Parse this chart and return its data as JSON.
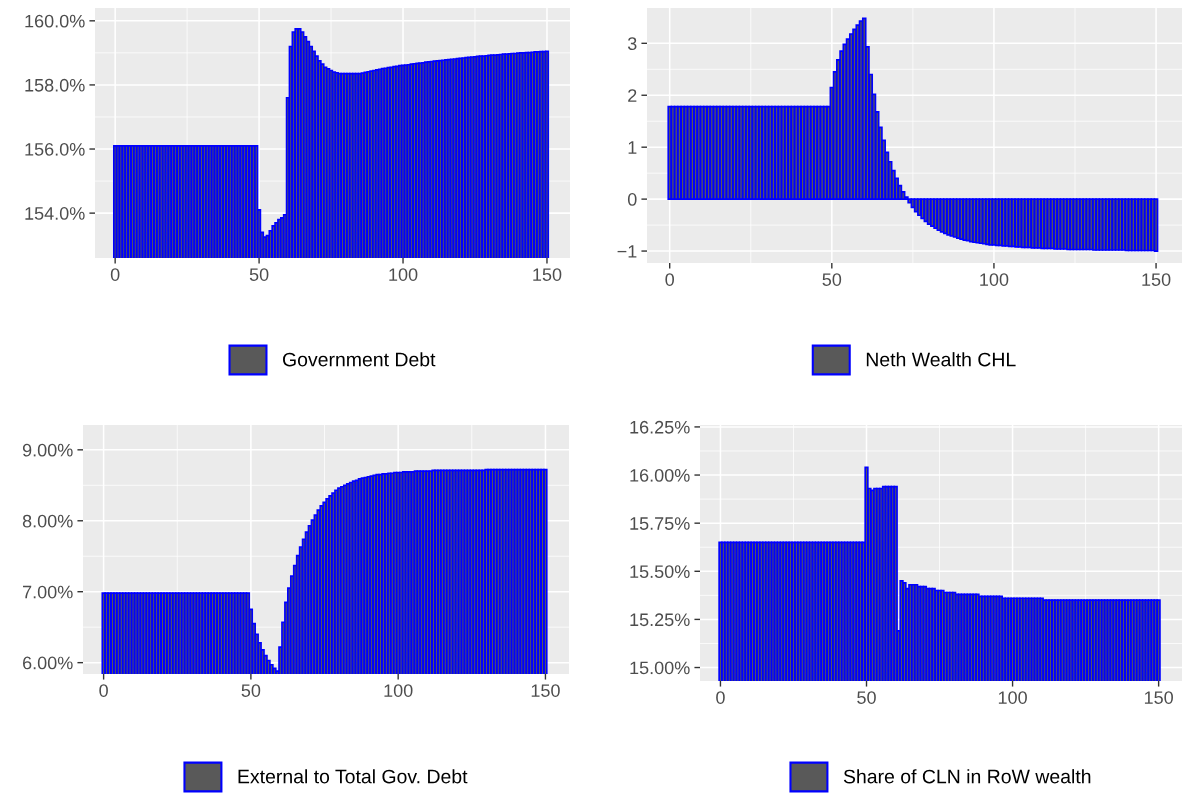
{
  "chart_data": [
    {
      "type": "bar",
      "x": [
        0,
        1,
        2,
        3,
        4,
        5,
        6,
        7,
        8,
        9,
        10,
        11,
        12,
        13,
        14,
        15,
        16,
        17,
        18,
        19,
        20,
        21,
        22,
        23,
        24,
        25,
        26,
        27,
        28,
        29,
        30,
        31,
        32,
        33,
        34,
        35,
        36,
        37,
        38,
        39,
        40,
        41,
        42,
        43,
        44,
        45,
        46,
        47,
        48,
        49,
        50,
        51,
        52,
        53,
        54,
        55,
        56,
        57,
        58,
        59,
        60,
        61,
        62,
        63,
        64,
        65,
        66,
        67,
        68,
        69,
        70,
        71,
        72,
        73,
        74,
        75,
        76,
        77,
        78,
        79,
        80,
        81,
        82,
        83,
        84,
        85,
        86,
        87,
        88,
        89,
        90,
        91,
        92,
        93,
        94,
        95,
        96,
        97,
        98,
        99,
        100,
        101,
        102,
        103,
        104,
        105,
        106,
        107,
        108,
        109,
        110,
        111,
        112,
        113,
        114,
        115,
        116,
        117,
        118,
        119,
        120,
        121,
        122,
        123,
        124,
        125,
        126,
        127,
        128,
        129,
        130,
        131,
        132,
        133,
        134,
        135,
        136,
        137,
        138,
        139,
        140,
        141,
        142,
        143,
        144,
        145,
        146,
        147,
        148,
        149,
        150
      ],
      "series": [
        {
          "name": "Government Debt",
          "color": "#0000ff",
          "values": [
            156.1,
            156.1,
            156.1,
            156.1,
            156.1,
            156.1,
            156.1,
            156.1,
            156.1,
            156.1,
            156.1,
            156.1,
            156.1,
            156.1,
            156.1,
            156.1,
            156.1,
            156.1,
            156.1,
            156.1,
            156.1,
            156.1,
            156.1,
            156.1,
            156.1,
            156.1,
            156.1,
            156.1,
            156.1,
            156.1,
            156.1,
            156.1,
            156.1,
            156.1,
            156.1,
            156.1,
            156.1,
            156.1,
            156.1,
            156.1,
            156.1,
            156.1,
            156.1,
            156.1,
            156.1,
            156.1,
            156.1,
            156.1,
            156.1,
            156.1,
            154.1,
            153.4,
            153.25,
            153.3,
            153.45,
            153.6,
            153.7,
            153.8,
            153.85,
            153.95,
            157.6,
            159.2,
            159.65,
            159.75,
            159.75,
            159.65,
            159.5,
            159.35,
            159.2,
            159.05,
            158.9,
            158.75,
            158.65,
            158.55,
            158.5,
            158.45,
            158.4,
            158.38,
            158.35,
            158.35,
            158.35,
            158.35,
            158.35,
            158.35,
            158.35,
            158.35,
            158.37,
            158.39,
            158.41,
            158.43,
            158.45,
            158.47,
            158.49,
            158.51,
            158.52,
            158.54,
            158.55,
            158.57,
            158.58,
            158.6,
            158.61,
            158.62,
            158.63,
            158.65,
            158.66,
            158.67,
            158.68,
            158.69,
            158.71,
            158.72,
            158.73,
            158.74,
            158.75,
            158.76,
            158.77,
            158.78,
            158.79,
            158.8,
            158.81,
            158.82,
            158.83,
            158.84,
            158.85,
            158.86,
            158.87,
            158.88,
            158.89,
            158.9,
            158.9,
            158.91,
            158.92,
            158.93,
            158.93,
            158.94,
            158.95,
            158.96,
            158.96,
            158.97,
            158.98,
            158.98,
            158.99,
            159.0,
            159.0,
            159.01,
            159.01,
            159.02,
            159.03,
            159.03,
            159.04,
            159.04,
            159.05
          ]
        }
      ],
      "xlim": [
        -7,
        158
      ],
      "xticks": [
        0,
        50,
        100,
        150
      ],
      "ylim": [
        152.6,
        160.4
      ],
      "yticks": [
        {
          "value": 154,
          "label": "154.0%"
        },
        {
          "value": 156,
          "label": "156.0%"
        },
        {
          "value": 158,
          "label": "158.0%"
        },
        {
          "value": 160,
          "label": "160.0%"
        }
      ],
      "grid": true,
      "legend": "bottom"
    },
    {
      "type": "bar",
      "x": [
        0,
        1,
        2,
        3,
        4,
        5,
        6,
        7,
        8,
        9,
        10,
        11,
        12,
        13,
        14,
        15,
        16,
        17,
        18,
        19,
        20,
        21,
        22,
        23,
        24,
        25,
        26,
        27,
        28,
        29,
        30,
        31,
        32,
        33,
        34,
        35,
        36,
        37,
        38,
        39,
        40,
        41,
        42,
        43,
        44,
        45,
        46,
        47,
        48,
        49,
        50,
        51,
        52,
        53,
        54,
        55,
        56,
        57,
        58,
        59,
        60,
        61,
        62,
        63,
        64,
        65,
        66,
        67,
        68,
        69,
        70,
        71,
        72,
        73,
        74,
        75,
        76,
        77,
        78,
        79,
        80,
        81,
        82,
        83,
        84,
        85,
        86,
        87,
        88,
        89,
        90,
        91,
        92,
        93,
        94,
        95,
        96,
        97,
        98,
        99,
        100,
        101,
        102,
        103,
        104,
        105,
        106,
        107,
        108,
        109,
        110,
        111,
        112,
        113,
        114,
        115,
        116,
        117,
        118,
        119,
        120,
        121,
        122,
        123,
        124,
        125,
        126,
        127,
        128,
        129,
        130,
        131,
        132,
        133,
        134,
        135,
        136,
        137,
        138,
        139,
        140,
        141,
        142,
        143,
        144,
        145,
        146,
        147,
        148,
        149,
        150
      ],
      "series": [
        {
          "name": "Neth Wealth CHL",
          "color": "#0000ff",
          "values": [
            1.78,
            1.78,
            1.78,
            1.78,
            1.78,
            1.78,
            1.78,
            1.78,
            1.78,
            1.78,
            1.78,
            1.78,
            1.78,
            1.78,
            1.78,
            1.78,
            1.78,
            1.78,
            1.78,
            1.78,
            1.78,
            1.78,
            1.78,
            1.78,
            1.78,
            1.78,
            1.78,
            1.78,
            1.78,
            1.78,
            1.78,
            1.78,
            1.78,
            1.78,
            1.78,
            1.78,
            1.78,
            1.78,
            1.78,
            1.78,
            1.78,
            1.78,
            1.78,
            1.78,
            1.78,
            1.78,
            1.78,
            1.78,
            1.78,
            1.78,
            2.15,
            2.45,
            2.68,
            2.85,
            2.98,
            3.08,
            3.18,
            3.27,
            3.35,
            3.43,
            3.48,
            2.93,
            2.4,
            2.02,
            1.68,
            1.38,
            1.13,
            0.9,
            0.72,
            0.55,
            0.4,
            0.26,
            0.14,
            0.04,
            -0.07,
            -0.16,
            -0.24,
            -0.31,
            -0.37,
            -0.43,
            -0.48,
            -0.52,
            -0.56,
            -0.6,
            -0.63,
            -0.66,
            -0.69,
            -0.71,
            -0.73,
            -0.75,
            -0.77,
            -0.79,
            -0.8,
            -0.82,
            -0.83,
            -0.84,
            -0.85,
            -0.86,
            -0.87,
            -0.88,
            -0.88,
            -0.89,
            -0.89,
            -0.9,
            -0.9,
            -0.91,
            -0.91,
            -0.92,
            -0.92,
            -0.93,
            -0.93,
            -0.93,
            -0.94,
            -0.94,
            -0.94,
            -0.95,
            -0.95,
            -0.95,
            -0.95,
            -0.96,
            -0.96,
            -0.96,
            -0.96,
            -0.97,
            -0.97,
            -0.97,
            -0.97,
            -0.97,
            -0.97,
            -0.97,
            -0.97,
            -0.98,
            -0.98,
            -0.98,
            -0.98,
            -0.98,
            -0.98,
            -0.98,
            -0.98,
            -0.98,
            -0.98,
            -0.99,
            -0.99,
            -0.99,
            -0.99,
            -0.99,
            -0.99,
            -0.99,
            -0.99,
            -0.99,
            -1.0
          ]
        }
      ],
      "xlim": [
        -7,
        158
      ],
      "xticks": [
        0,
        50,
        100,
        150
      ],
      "ylim": [
        -1.23,
        3.68
      ],
      "yticks": [
        {
          "value": -1,
          "label": "−1"
        },
        0,
        1,
        2,
        3
      ],
      "grid": true,
      "legend": "bottom"
    },
    {
      "type": "bar",
      "x": [
        0,
        1,
        2,
        3,
        4,
        5,
        6,
        7,
        8,
        9,
        10,
        11,
        12,
        13,
        14,
        15,
        16,
        17,
        18,
        19,
        20,
        21,
        22,
        23,
        24,
        25,
        26,
        27,
        28,
        29,
        30,
        31,
        32,
        33,
        34,
        35,
        36,
        37,
        38,
        39,
        40,
        41,
        42,
        43,
        44,
        45,
        46,
        47,
        48,
        49,
        50,
        51,
        52,
        53,
        54,
        55,
        56,
        57,
        58,
        59,
        60,
        61,
        62,
        63,
        64,
        65,
        66,
        67,
        68,
        69,
        70,
        71,
        72,
        73,
        74,
        75,
        76,
        77,
        78,
        79,
        80,
        81,
        82,
        83,
        84,
        85,
        86,
        87,
        88,
        89,
        90,
        91,
        92,
        93,
        94,
        95,
        96,
        97,
        98,
        99,
        100,
        101,
        102,
        103,
        104,
        105,
        106,
        107,
        108,
        109,
        110,
        111,
        112,
        113,
        114,
        115,
        116,
        117,
        118,
        119,
        120,
        121,
        122,
        123,
        124,
        125,
        126,
        127,
        128,
        129,
        130,
        131,
        132,
        133,
        134,
        135,
        136,
        137,
        138,
        139,
        140,
        141,
        142,
        143,
        144,
        145,
        146,
        147,
        148,
        149,
        150
      ],
      "series": [
        {
          "name": "External to Total Gov. Debt",
          "color": "#0000ff",
          "values": [
            6.98,
            6.98,
            6.98,
            6.98,
            6.98,
            6.98,
            6.98,
            6.98,
            6.98,
            6.98,
            6.98,
            6.98,
            6.98,
            6.98,
            6.98,
            6.98,
            6.98,
            6.98,
            6.98,
            6.98,
            6.98,
            6.98,
            6.98,
            6.98,
            6.98,
            6.98,
            6.98,
            6.98,
            6.98,
            6.98,
            6.98,
            6.98,
            6.98,
            6.98,
            6.98,
            6.98,
            6.98,
            6.98,
            6.98,
            6.98,
            6.98,
            6.98,
            6.98,
            6.98,
            6.98,
            6.98,
            6.98,
            6.98,
            6.98,
            6.98,
            6.75,
            6.55,
            6.4,
            6.28,
            6.18,
            6.1,
            6.03,
            5.97,
            5.92,
            5.88,
            6.22,
            6.57,
            6.85,
            7.05,
            7.22,
            7.37,
            7.51,
            7.63,
            7.74,
            7.84,
            7.93,
            8.01,
            8.08,
            8.15,
            8.21,
            8.26,
            8.31,
            8.35,
            8.39,
            8.43,
            8.46,
            8.48,
            8.5,
            8.52,
            8.54,
            8.56,
            8.57,
            8.59,
            8.6,
            8.61,
            8.62,
            8.63,
            8.64,
            8.65,
            8.65,
            8.66,
            8.66,
            8.67,
            8.67,
            8.68,
            8.68,
            8.68,
            8.69,
            8.69,
            8.69,
            8.69,
            8.7,
            8.7,
            8.7,
            8.7,
            8.7,
            8.7,
            8.71,
            8.71,
            8.71,
            8.71,
            8.71,
            8.71,
            8.71,
            8.71,
            8.71,
            8.71,
            8.71,
            8.71,
            8.71,
            8.71,
            8.71,
            8.71,
            8.71,
            8.71,
            8.72,
            8.72,
            8.72,
            8.72,
            8.72,
            8.72,
            8.72,
            8.72,
            8.72,
            8.72,
            8.72,
            8.72,
            8.72,
            8.72,
            8.72,
            8.72,
            8.72,
            8.72,
            8.72,
            8.72,
            8.72
          ]
        }
      ],
      "xlim": [
        -7,
        158
      ],
      "xticks": [
        0,
        50,
        100,
        150
      ],
      "ylim": [
        5.84,
        9.35
      ],
      "yticks": [
        {
          "value": 6,
          "label": "6.00%"
        },
        {
          "value": 7,
          "label": "7.00%"
        },
        {
          "value": 8,
          "label": "8.00%"
        },
        {
          "value": 9,
          "label": "9.00%"
        }
      ],
      "grid": true,
      "legend": "bottom"
    },
    {
      "type": "bar",
      "x": [
        0,
        1,
        2,
        3,
        4,
        5,
        6,
        7,
        8,
        9,
        10,
        11,
        12,
        13,
        14,
        15,
        16,
        17,
        18,
        19,
        20,
        21,
        22,
        23,
        24,
        25,
        26,
        27,
        28,
        29,
        30,
        31,
        32,
        33,
        34,
        35,
        36,
        37,
        38,
        39,
        40,
        41,
        42,
        43,
        44,
        45,
        46,
        47,
        48,
        49,
        50,
        51,
        52,
        53,
        54,
        55,
        56,
        57,
        58,
        59,
        60,
        61,
        62,
        63,
        64,
        65,
        66,
        67,
        68,
        69,
        70,
        71,
        72,
        73,
        74,
        75,
        76,
        77,
        78,
        79,
        80,
        81,
        82,
        83,
        84,
        85,
        86,
        87,
        88,
        89,
        90,
        91,
        92,
        93,
        94,
        95,
        96,
        97,
        98,
        99,
        100,
        101,
        102,
        103,
        104,
        105,
        106,
        107,
        108,
        109,
        110,
        111,
        112,
        113,
        114,
        115,
        116,
        117,
        118,
        119,
        120,
        121,
        122,
        123,
        124,
        125,
        126,
        127,
        128,
        129,
        130,
        131,
        132,
        133,
        134,
        135,
        136,
        137,
        138,
        139,
        140,
        141,
        142,
        143,
        144,
        145,
        146,
        147,
        148,
        149,
        150
      ],
      "series": [
        {
          "name": "Share of CLN in RoW wealth",
          "color": "#0000ff",
          "values": [
            15.65,
            15.65,
            15.65,
            15.65,
            15.65,
            15.65,
            15.65,
            15.65,
            15.65,
            15.65,
            15.65,
            15.65,
            15.65,
            15.65,
            15.65,
            15.65,
            15.65,
            15.65,
            15.65,
            15.65,
            15.65,
            15.65,
            15.65,
            15.65,
            15.65,
            15.65,
            15.65,
            15.65,
            15.65,
            15.65,
            15.65,
            15.65,
            15.65,
            15.65,
            15.65,
            15.65,
            15.65,
            15.65,
            15.65,
            15.65,
            15.65,
            15.65,
            15.65,
            15.65,
            15.65,
            15.65,
            15.65,
            15.65,
            15.65,
            15.65,
            16.04,
            15.93,
            15.92,
            15.93,
            15.93,
            15.93,
            15.94,
            15.94,
            15.94,
            15.94,
            15.94,
            15.19,
            15.45,
            15.44,
            15.41,
            15.43,
            15.43,
            15.43,
            15.42,
            15.42,
            15.42,
            15.41,
            15.41,
            15.41,
            15.4,
            15.4,
            15.4,
            15.39,
            15.39,
            15.39,
            15.39,
            15.38,
            15.38,
            15.38,
            15.38,
            15.38,
            15.38,
            15.38,
            15.38,
            15.37,
            15.37,
            15.37,
            15.37,
            15.37,
            15.37,
            15.37,
            15.37,
            15.36,
            15.36,
            15.36,
            15.36,
            15.36,
            15.36,
            15.36,
            15.36,
            15.36,
            15.36,
            15.36,
            15.36,
            15.36,
            15.36,
            15.35,
            15.35,
            15.35,
            15.35,
            15.35,
            15.35,
            15.35,
            15.35,
            15.35,
            15.35,
            15.35,
            15.35,
            15.35,
            15.35,
            15.35,
            15.35,
            15.35,
            15.35,
            15.35,
            15.35,
            15.35,
            15.35,
            15.35,
            15.35,
            15.35,
            15.35,
            15.35,
            15.35,
            15.35,
            15.35,
            15.35,
            15.35,
            15.35,
            15.35,
            15.35,
            15.35,
            15.35,
            15.35,
            15.35,
            15.35
          ]
        }
      ],
      "xlim": [
        -7,
        158
      ],
      "xticks": [
        0,
        50,
        100,
        150
      ],
      "ylim": [
        14.93,
        16.26
      ],
      "yticks": [
        {
          "value": 15,
          "label": "15.00%"
        },
        {
          "value": 15.25,
          "label": "15.25%"
        },
        {
          "value": 15.5,
          "label": "15.50%"
        },
        {
          "value": 15.75,
          "label": "15.75%"
        },
        {
          "value": 16,
          "label": "16.00%"
        },
        {
          "value": 16.25,
          "label": "16.25%"
        }
      ],
      "grid": true,
      "legend": "bottom"
    }
  ]
}
